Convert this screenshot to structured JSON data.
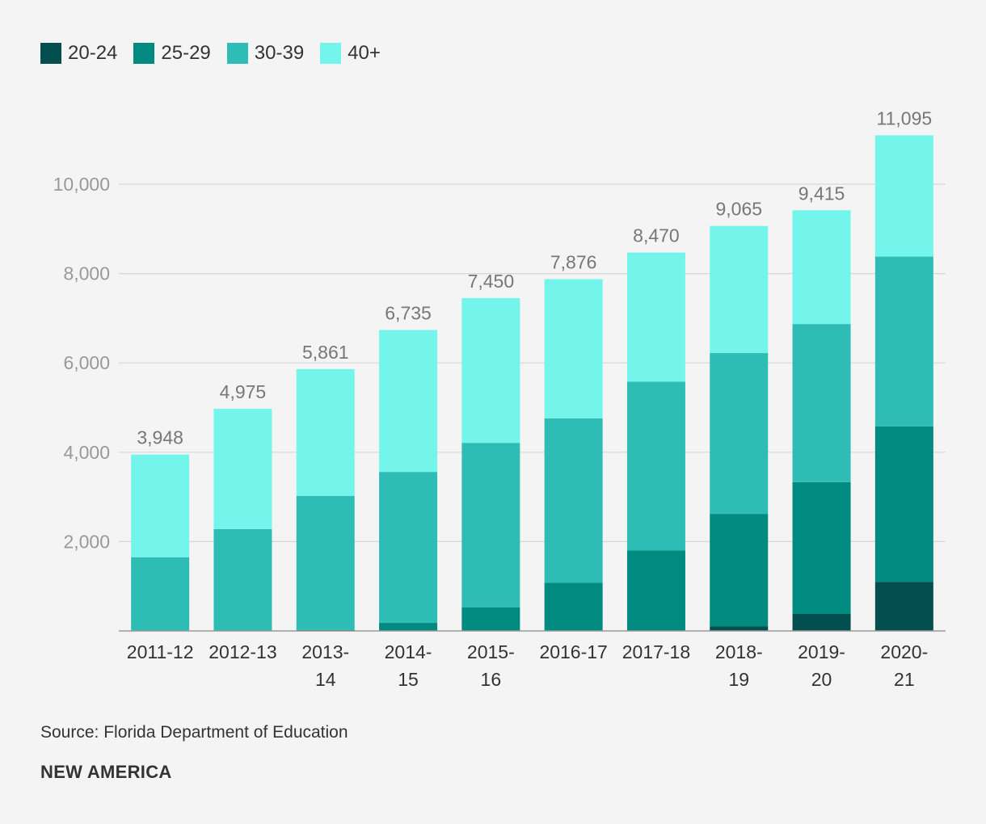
{
  "chart_data": {
    "type": "bar",
    "stacked": true,
    "categories": [
      "2011-12",
      "2012-13",
      "2013-14",
      "2014-15",
      "2015-16",
      "2016-17",
      "2017-18",
      "2018-19",
      "2019-20",
      "2020-21"
    ],
    "category_lines": [
      [
        "2011-12"
      ],
      [
        "2012-13"
      ],
      [
        "2013-",
        "14"
      ],
      [
        "2014-",
        "15"
      ],
      [
        "2015-",
        "16"
      ],
      [
        "2016-17"
      ],
      [
        "2017-18"
      ],
      [
        "2018-",
        "19"
      ],
      [
        "2019-",
        "20"
      ],
      [
        "2020-",
        "21"
      ]
    ],
    "series": [
      {
        "name": "20-24",
        "color": "#034f4f",
        "values": [
          0,
          0,
          20,
          0,
          0,
          0,
          0,
          100,
          380,
          1100
        ]
      },
      {
        "name": "25-29",
        "color": "#008a80",
        "values": [
          0,
          0,
          0,
          180,
          530,
          1080,
          1800,
          2520,
          2950,
          3480
        ]
      },
      {
        "name": "30-39",
        "color": "#2ebdb5",
        "values": [
          1650,
          2280,
          3000,
          3380,
          3680,
          3680,
          3780,
          3600,
          3540,
          3800
        ]
      },
      {
        "name": "40+",
        "color": "#74f5ec",
        "values": [
          2298,
          2695,
          2841,
          3175,
          3240,
          3116,
          2890,
          2845,
          2545,
          2715
        ]
      }
    ],
    "totals": [
      "3,948",
      "4,975",
      "5,861",
      "6,735",
      "7,450",
      "7,876",
      "8,470",
      "9,065",
      "9,415",
      "11,095"
    ],
    "total_values": [
      3948,
      4975,
      5861,
      6735,
      7450,
      7876,
      8470,
      9065,
      9415,
      11095
    ],
    "y_ticks": [
      2000,
      4000,
      6000,
      8000,
      10000
    ],
    "y_tick_labels": [
      "2,000",
      "4,000",
      "6,000",
      "8,000",
      "10,000"
    ],
    "ylim": [
      0,
      11095
    ],
    "grid": true,
    "legend_position": "top-left"
  },
  "legend": [
    {
      "label": "20-24",
      "color": "#034f4f"
    },
    {
      "label": "25-29",
      "color": "#008a80"
    },
    {
      "label": "30-39",
      "color": "#2ebdb5"
    },
    {
      "label": "40+",
      "color": "#74f5ec"
    }
  ],
  "source": "Source: Florida Department of Education",
  "brand": "NEW AMERICA"
}
